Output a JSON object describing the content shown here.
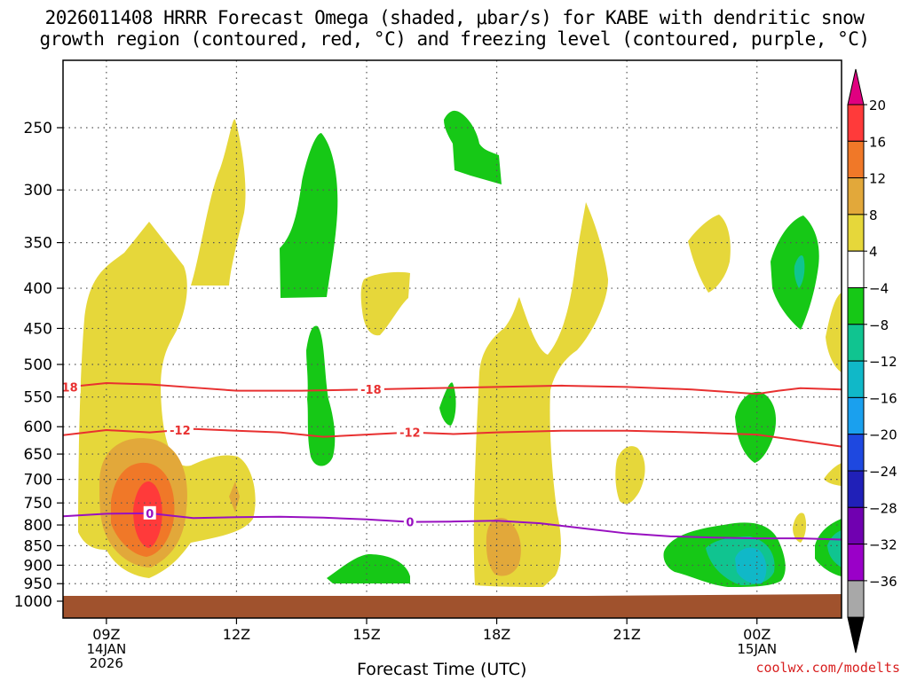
{
  "chart_data": {
    "type": "heatmap",
    "title_line1": "2026011408 HRRR Forecast Omega (shaded, μbar/s) for KABE with dendritic snow",
    "title_line2": "growth region (contoured, red, °C) and freezing level (contoured, purple, °C)",
    "xlabel": "Forecast Time (UTC)",
    "ylabel": "",
    "xlim": [
      8.0,
      25.95
    ],
    "x_ticks": [
      {
        "value": 9,
        "label": "09Z",
        "sub1": "14JAN",
        "sub2": "2026"
      },
      {
        "value": 12,
        "label": "12Z"
      },
      {
        "value": 15,
        "label": "15Z"
      },
      {
        "value": 18,
        "label": "18Z"
      },
      {
        "value": 21,
        "label": "21Z"
      },
      {
        "value": 24,
        "label": "00Z",
        "sub1": "15JAN"
      }
    ],
    "y_pressure_levels": [
      250,
      300,
      350,
      400,
      450,
      500,
      550,
      600,
      650,
      700,
      750,
      800,
      850,
      900,
      950,
      1000
    ],
    "colorbar": {
      "labels": [
        "20",
        "16",
        "12",
        "8",
        "4",
        "−4",
        "−8",
        "−12",
        "−16",
        "−20",
        "−24",
        "−28",
        "−32",
        "−36"
      ],
      "colors": [
        "#ff3a3a",
        "#f07828",
        "#e2a83a",
        "#e6d73a",
        "#ffffff",
        "#16c816",
        "#10c490",
        "#10b8c8",
        "#1aa0ee",
        "#1e48e0",
        "#2020b8",
        "#7000b0",
        "#9a00c8",
        "#a8a8a8"
      ],
      "top_arrow_color": "#e00080",
      "bottom_arrow_color": "#000000"
    },
    "contours": [
      {
        "label": "-18",
        "color": "#e83030",
        "points": [
          [
            8.0,
            535
          ],
          [
            9.0,
            528
          ],
          [
            10.0,
            530
          ],
          [
            11.0,
            535
          ],
          [
            12.0,
            540
          ],
          [
            13.5,
            540
          ],
          [
            15.0,
            538
          ],
          [
            16.5,
            536
          ],
          [
            18.0,
            534
          ],
          [
            19.5,
            532
          ],
          [
            21.0,
            534
          ],
          [
            22.5,
            538
          ],
          [
            24.0,
            545
          ],
          [
            24.5,
            540
          ],
          [
            25.0,
            536
          ],
          [
            25.95,
            538
          ]
        ],
        "label_x": [
          8.1,
          15.1
        ]
      },
      {
        "label": "-12",
        "color": "#e83030",
        "points": [
          [
            8.0,
            615
          ],
          [
            9.0,
            606
          ],
          [
            10.0,
            610
          ],
          [
            11.0,
            604
          ],
          [
            12.0,
            607
          ],
          [
            13.0,
            610
          ],
          [
            14.0,
            618
          ],
          [
            15.0,
            614
          ],
          [
            16.0,
            610
          ],
          [
            17.0,
            613
          ],
          [
            18.0,
            610
          ],
          [
            19.5,
            607
          ],
          [
            21.0,
            607
          ],
          [
            22.5,
            610
          ],
          [
            24.0,
            614
          ],
          [
            25.0,
            625
          ],
          [
            25.95,
            636
          ]
        ],
        "label_x": [
          10.7,
          16.0
        ]
      },
      {
        "label": "0",
        "color": "#9810c0",
        "points": [
          [
            8.0,
            780
          ],
          [
            9.0,
            774
          ],
          [
            10.0,
            773
          ],
          [
            11.0,
            784
          ],
          [
            12.0,
            782
          ],
          [
            13.0,
            781
          ],
          [
            14.0,
            783
          ],
          [
            15.0,
            787
          ],
          [
            16.0,
            793
          ],
          [
            17.0,
            792
          ],
          [
            18.0,
            790
          ],
          [
            19.0,
            796
          ],
          [
            20.0,
            808
          ],
          [
            21.0,
            820
          ],
          [
            22.0,
            827
          ],
          [
            23.0,
            830
          ],
          [
            24.0,
            832
          ],
          [
            25.0,
            832
          ],
          [
            25.95,
            835
          ]
        ],
        "label_x": [
          10.0,
          16.0
        ]
      }
    ],
    "terrain_color": "#a0522d",
    "credit": "coolwx.com/modelts"
  }
}
